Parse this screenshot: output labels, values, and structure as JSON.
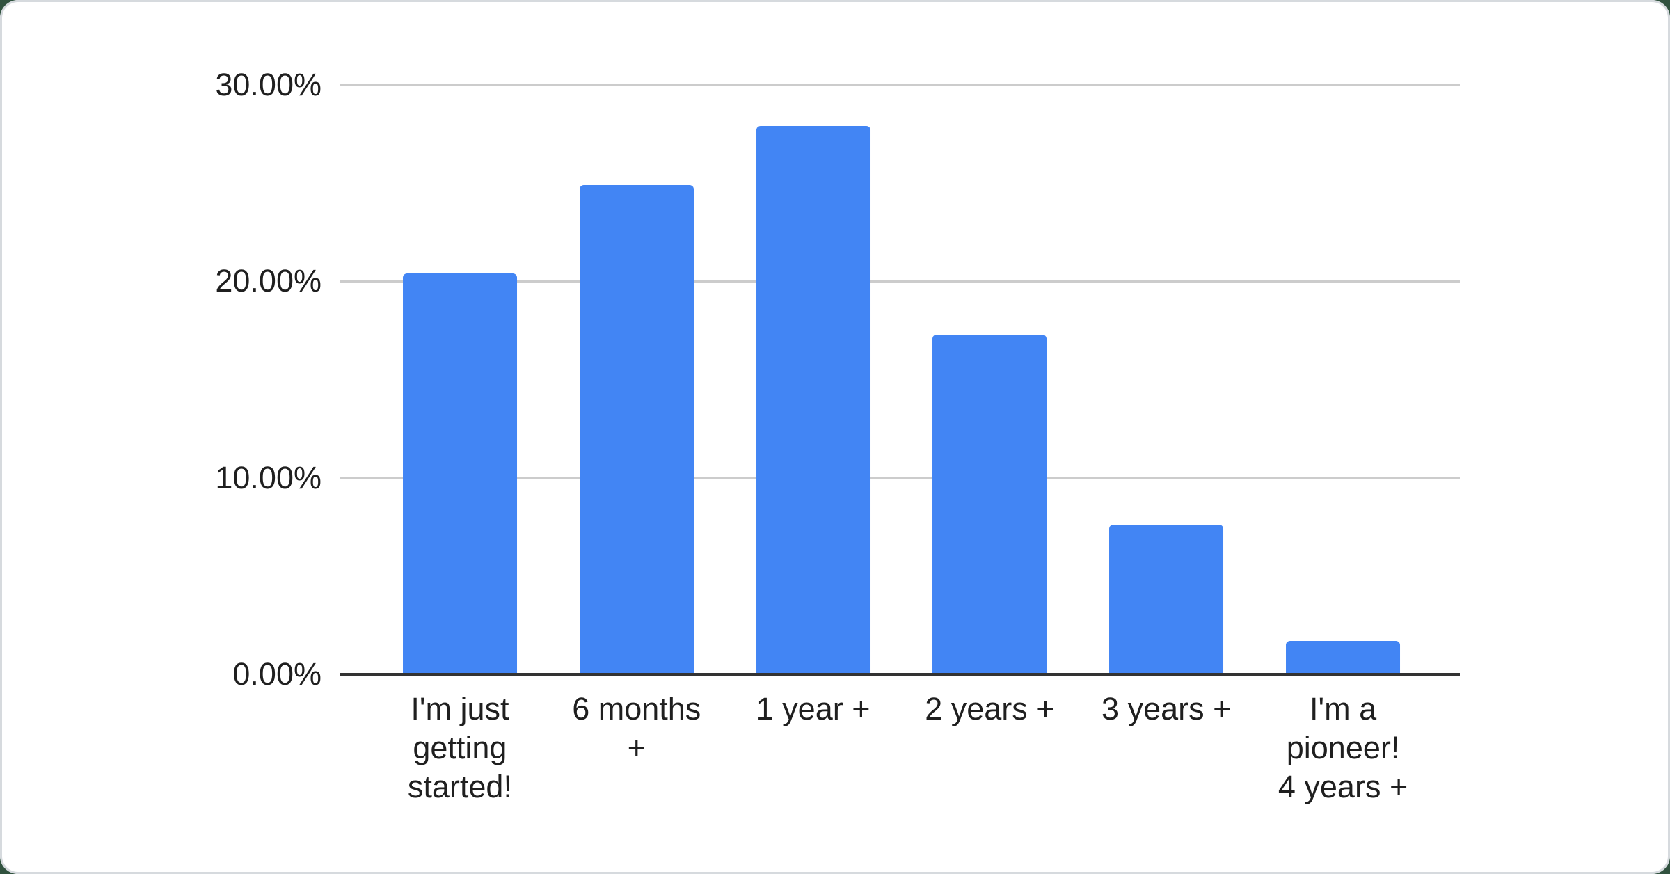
{
  "page": {
    "background_color": "#31523f",
    "card_background": "#ffffff",
    "card_border_color": "#d6dade"
  },
  "chart_data": {
    "type": "bar",
    "title": "",
    "xlabel": "",
    "ylabel": "",
    "categories": [
      "I'm just getting started!",
      "6 months +",
      "1 year +",
      "2 years +",
      "3 years +",
      "I'm a pioneer! 4 years +"
    ],
    "category_lines": [
      [
        "I'm just",
        "getting",
        "started!"
      ],
      [
        "6 months",
        "+"
      ],
      [
        "1 year +"
      ],
      [
        "2 years +"
      ],
      [
        "3 years +"
      ],
      [
        "I'm a",
        "pioneer!",
        "4 years +"
      ]
    ],
    "values": [
      20.4,
      24.9,
      27.9,
      17.3,
      7.6,
      1.7
    ],
    "unit": "%",
    "ylim": [
      0,
      30
    ],
    "ytick_step": 10,
    "yticks": [
      {
        "value": 0,
        "label": "0.00%"
      },
      {
        "value": 10,
        "label": "10.00%"
      },
      {
        "value": 20,
        "label": "20.00%"
      },
      {
        "value": 30,
        "label": "30.00%"
      }
    ],
    "grid": true,
    "legend_position": "none",
    "bar_color": "#4285f4",
    "gridline_color": "#cccccc",
    "axis_line_color": "#333333",
    "label_color": "#1f1f1f"
  }
}
